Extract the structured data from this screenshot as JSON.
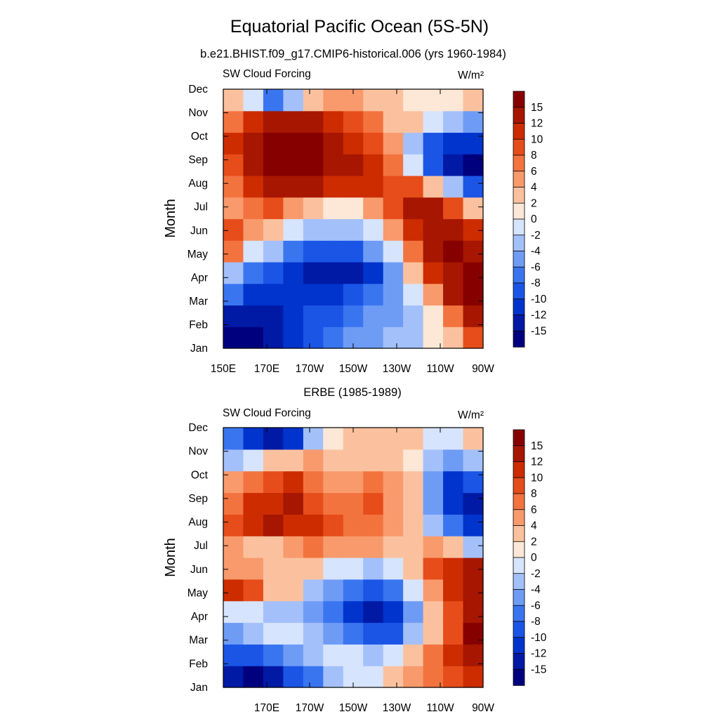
{
  "title": "Equatorial Pacific Ocean (5S-5N)",
  "colors": [
    "#00007f",
    "#001aa6",
    "#0034cc",
    "#1a55e6",
    "#3a75f0",
    "#6e9cf5",
    "#a3c0fa",
    "#d6e4fd",
    "#fde7d6",
    "#fbc19e",
    "#f89a6c",
    "#f3733f",
    "#e64d1a",
    "#cc2c00",
    "#a61600",
    "#870000"
  ],
  "colorbar_labels": [
    "15",
    "12",
    "10",
    "8",
    "6",
    "4",
    "2",
    "0",
    "-2",
    "-4",
    "-6",
    "-8",
    "-10",
    "-12",
    "-15"
  ],
  "chart_data": [
    {
      "type": "heatmap",
      "subtitle": "b.e21.BHIST.f09_g17.CMIP6-historical.006 (yrs 1960-1984)",
      "left_label": "SW Cloud Forcing",
      "units": "W/m²",
      "ylabel": "Month",
      "y_ticks": [
        "Jan",
        "Feb",
        "Mar",
        "Apr",
        "May",
        "Jun",
        "Jul",
        "Aug",
        "Sep",
        "Oct",
        "Nov",
        "Dec"
      ],
      "x_ticks": [
        "150E",
        "170E",
        "170W",
        "150W",
        "130W",
        "110W",
        "90W"
      ],
      "x_columns": [
        "150E",
        "160E",
        "170E",
        "180",
        "170W",
        "160W",
        "150W",
        "140W",
        "130W",
        "120W",
        "110W",
        "100W",
        "90W"
      ],
      "values": [
        [
          -16,
          -16,
          -14,
          -12,
          -10,
          -8,
          -6,
          -5,
          -4,
          -3,
          0,
          2,
          8
        ],
        [
          -14,
          -14,
          -13,
          -12,
          -10,
          -9,
          -7,
          -6,
          -5,
          -3,
          0,
          6,
          12
        ],
        [
          -8,
          -12,
          -12,
          -12,
          -12,
          -11,
          -10,
          -8,
          -6,
          -2,
          5,
          12,
          16
        ],
        [
          -4,
          -8,
          -10,
          -12,
          -14,
          -15,
          -15,
          -12,
          -6,
          2,
          10,
          14,
          17
        ],
        [
          6,
          -2,
          -4,
          -8,
          -10,
          -10,
          -9,
          -6,
          -2,
          6,
          12,
          15,
          14
        ],
        [
          8,
          5,
          2,
          -2,
          -4,
          -4,
          -3,
          -1,
          5,
          10,
          14,
          13,
          10
        ],
        [
          4,
          6,
          8,
          4,
          2,
          0,
          1,
          4,
          8,
          12,
          12,
          8,
          3
        ],
        [
          6,
          10,
          12,
          12,
          12,
          10,
          10,
          10,
          9,
          8,
          2,
          -4,
          -10
        ],
        [
          8,
          14,
          16,
          16,
          16,
          14,
          12,
          10,
          6,
          -2,
          -10,
          -14,
          -16
        ],
        [
          10,
          14,
          16,
          16,
          16,
          12,
          10,
          8,
          4,
          -4,
          -10,
          -12,
          -12
        ],
        [
          6,
          10,
          12,
          12,
          12,
          10,
          8,
          6,
          2,
          2,
          -2,
          -4,
          -6
        ],
        [
          2,
          -2,
          -8,
          -4,
          2,
          4,
          4,
          2,
          2,
          0,
          0,
          0,
          2
        ]
      ]
    },
    {
      "type": "heatmap",
      "subtitle": "ERBE (1985-1989)",
      "left_label": "SW Cloud Forcing",
      "units": "W/m²",
      "ylabel": "Month",
      "y_ticks": [
        "Jan",
        "Feb",
        "Mar",
        "Apr",
        "May",
        "Jun",
        "Jul",
        "Aug",
        "Sep",
        "Oct",
        "Nov",
        "Dec"
      ],
      "x_ticks": [
        "170E",
        "170W",
        "150W",
        "130W",
        "110W",
        "90W"
      ],
      "x_columns": [
        "150E",
        "160E",
        "170E",
        "180",
        "170W",
        "160W",
        "150W",
        "140W",
        "130W",
        "120W",
        "110W",
        "100W",
        "90W"
      ],
      "values": [
        [
          -14,
          -16,
          -14,
          -10,
          -8,
          -4,
          -2,
          -2,
          2,
          4,
          6,
          8,
          10
        ],
        [
          -10,
          -10,
          -8,
          -6,
          -4,
          -2,
          -2,
          -4,
          -2,
          2,
          6,
          10,
          12
        ],
        [
          -6,
          -4,
          -2,
          -2,
          -4,
          -6,
          -8,
          -10,
          -10,
          -4,
          2,
          8,
          16
        ],
        [
          -2,
          -2,
          -4,
          -4,
          -6,
          -8,
          -12,
          -14,
          -12,
          -6,
          2,
          8,
          12
        ],
        [
          10,
          8,
          2,
          2,
          -4,
          -6,
          -8,
          -10,
          -8,
          -2,
          4,
          10,
          12
        ],
        [
          4,
          4,
          2,
          2,
          2,
          -2,
          -2,
          -4,
          -2,
          2,
          8,
          10,
          12
        ],
        [
          4,
          2,
          2,
          4,
          6,
          4,
          4,
          4,
          2,
          2,
          4,
          2,
          -4
        ],
        [
          8,
          10,
          12,
          10,
          10,
          8,
          6,
          6,
          4,
          2,
          -4,
          -8,
          -12
        ],
        [
          6,
          10,
          10,
          12,
          8,
          6,
          6,
          8,
          4,
          2,
          -6,
          -12,
          -14
        ],
        [
          4,
          6,
          8,
          10,
          6,
          4,
          4,
          6,
          4,
          2,
          -6,
          -12,
          -10
        ],
        [
          -4,
          -2,
          2,
          2,
          4,
          2,
          2,
          2,
          2,
          0,
          -4,
          -6,
          -4
        ],
        [
          -8,
          -12,
          -14,
          -12,
          -4,
          0,
          2,
          2,
          2,
          2,
          -2,
          -2,
          2
        ]
      ]
    }
  ]
}
